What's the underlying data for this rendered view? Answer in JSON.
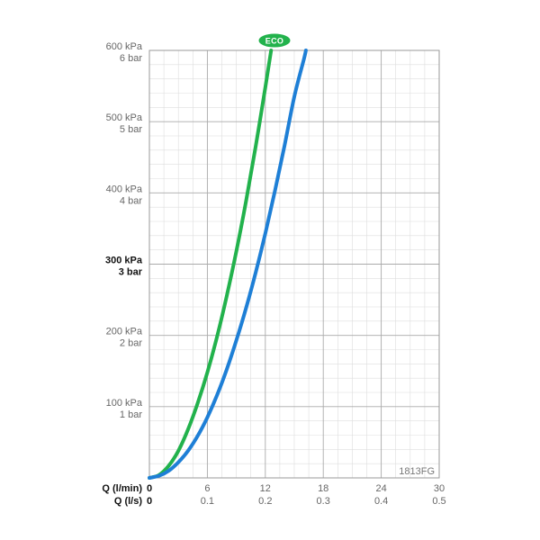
{
  "chart_data": {
    "type": "line",
    "code_label": "1813FG",
    "badge_label": "ECO",
    "x_axis": {
      "title_lpm": "Q (l/min)",
      "title_ls": "Q (l/s)",
      "range": [
        0,
        30
      ],
      "ticks_lpm": [
        "0",
        "6",
        "12",
        "18",
        "24",
        "30"
      ],
      "ticks_ls": [
        "0",
        "0.1",
        "0.2",
        "0.3",
        "0.4",
        "0.5"
      ],
      "tick_values": [
        0,
        6,
        12,
        18,
        24,
        30
      ]
    },
    "y_axis": {
      "unit": "kPa",
      "range": [
        0,
        600
      ],
      "tick_values": [
        100,
        200,
        300,
        400,
        500,
        600
      ],
      "ticks_kpa": [
        "100 kPa",
        "200 kPa",
        "300 kPa",
        "400 kPa",
        "500 kPa",
        "600 kPa"
      ],
      "ticks_bar": [
        "1 bar",
        "2 bar",
        "3 bar",
        "4 bar",
        "5 bar",
        "6 bar"
      ],
      "bold_tick": 300
    },
    "grid": true,
    "series": [
      {
        "color": "#22b24c",
        "x": [
          0,
          1,
          2,
          3,
          4,
          5,
          6,
          7,
          8,
          9,
          10,
          11,
          12,
          12.6
        ],
        "y": [
          0,
          4,
          17,
          38,
          68,
          105,
          148,
          198,
          255,
          318,
          388,
          465,
          548,
          600
        ]
      },
      {
        "color": "#1e7fd6",
        "x": [
          0,
          1,
          2,
          3,
          4,
          5,
          6,
          7,
          8,
          9,
          10,
          11,
          12,
          13,
          14,
          15,
          16,
          16.2
        ],
        "y": [
          0,
          3,
          10,
          22,
          38,
          59,
          85,
          116,
          152,
          193,
          238,
          288,
          343,
          403,
          467,
          535,
          588,
          600
        ]
      }
    ],
    "colors": {
      "grid_major": "#aaaaaa",
      "grid_minor": "#dddddd",
      "badge": "#22b24c"
    }
  }
}
